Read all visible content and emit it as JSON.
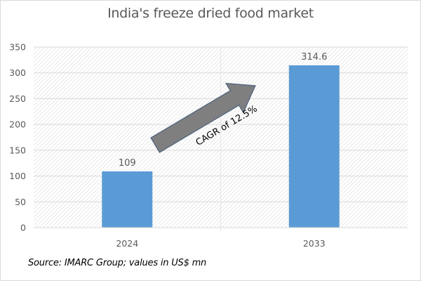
{
  "chart_data": {
    "type": "bar",
    "title": "India's freeze dried food market",
    "categories": [
      "2024",
      "2033"
    ],
    "values": [
      109,
      314.6
    ],
    "data_labels": [
      "109",
      "314.6"
    ],
    "xlabel": "",
    "ylabel": "",
    "ylim": [
      0,
      350
    ],
    "yticks": [
      0,
      50,
      100,
      150,
      200,
      250,
      300,
      350
    ],
    "grid": true,
    "legend": "none",
    "bar_color": "#5b9bd5",
    "annotations": [
      {
        "type": "arrow",
        "text": "CAGR of 12.5%",
        "from_category": "2024",
        "to_category": "2033",
        "fill": "#7f7f7f",
        "outline": "#596a82"
      }
    ],
    "source": "Source: IMARC Group; values in US$ mn"
  }
}
